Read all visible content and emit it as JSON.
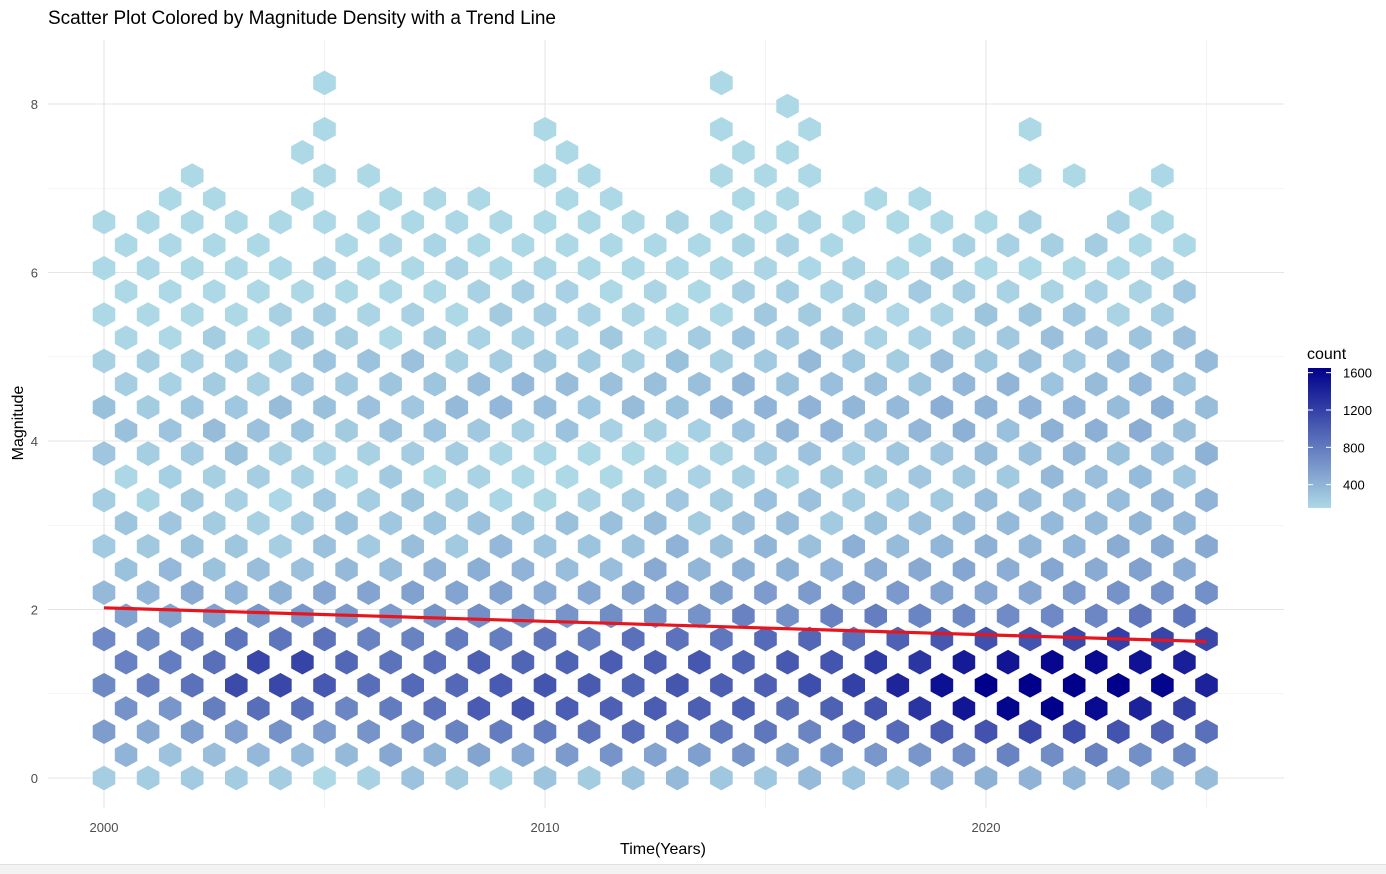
{
  "chart_data": {
    "type": "hexbin",
    "title": "Scatter Plot Colored by Magnitude Density with a Trend Line",
    "xlabel": "Time(Years)",
    "ylabel": "Magnitude",
    "xlim": [
      1999.5,
      2026.0
    ],
    "ylim": [
      -0.3,
      8.8
    ],
    "x_ticks": [
      2000,
      2010,
      2020
    ],
    "y_ticks": [
      0,
      2,
      4,
      6,
      8
    ],
    "grid": true,
    "fill_low": "#add8e6",
    "fill_high": "#00008b",
    "legend": {
      "title": "count",
      "position": "right",
      "ticks": [
        400,
        800,
        1200,
        1600
      ],
      "range": [
        150,
        1650
      ]
    },
    "trend_line": {
      "color": "#e8141e",
      "points": [
        [
          2000,
          2.02
        ],
        [
          2025,
          1.62
        ]
      ]
    },
    "hexbin": {
      "x_centers": [
        2000,
        2000.5,
        2001,
        2001.5,
        2002,
        2002.5,
        2003,
        2003.5,
        2004,
        2004.5,
        2005,
        2005.5,
        2006,
        2006.5,
        2007,
        2007.5,
        2008,
        2008.5,
        2009,
        2009.5,
        2010,
        2010.5,
        2011,
        2011.5,
        2012,
        2012.5,
        2013,
        2013.5,
        2014,
        2014.5,
        2015,
        2015.5,
        2016,
        2016.5,
        2017,
        2017.5,
        2018,
        2018.5,
        2019,
        2019.5,
        2020,
        2020.5,
        2021,
        2021.5,
        2022,
        2022.5,
        2023,
        2023.5,
        2024,
        2024.5,
        2025
      ],
      "y_step": 0.275,
      "y_min": 0,
      "y_max": 8.4,
      "top_magnitude_by_column": [
        7.0,
        6.6,
        6.6,
        7.2,
        7.5,
        7.3,
        7.0,
        6.8,
        6.8,
        7.4,
        8.2,
        6.6,
        7.4,
        6.9,
        7.0,
        6.9,
        6.9,
        7.0,
        6.7,
        6.4,
        7.7,
        7.7,
        7.3,
        7.0,
        7.0,
        6.6,
        6.6,
        6.6,
        8.4,
        7.7,
        7.4,
        8.4,
        7.7,
        7.0,
        6.8,
        7.0,
        6.7,
        7.0,
        6.8,
        6.8,
        6.8,
        6.8,
        7.7,
        6.8,
        7.2,
        6.6,
        6.8,
        7.0,
        7.2,
        6.7,
        5.1
      ],
      "gaps": [
        [
          2002.0,
          6.8
        ],
        [
          2004.5,
          6.4
        ],
        [
          2009.5,
          6.5
        ],
        [
          2012.5,
          7.0
        ],
        [
          2016.5,
          6.8
        ],
        [
          2017.5,
          6.2
        ],
        [
          2021.5,
          6.6
        ],
        [
          2022.0,
          6.6
        ]
      ],
      "density_notes": "Highest counts (~1650) near magnitude 1.0-1.3 around 2020-2024; secondary peaks ~1400 near 2003 and 2004.5 at magnitude 1.2; lighter band near magnitude 3.5-4.2 around 2010-2016."
    }
  }
}
